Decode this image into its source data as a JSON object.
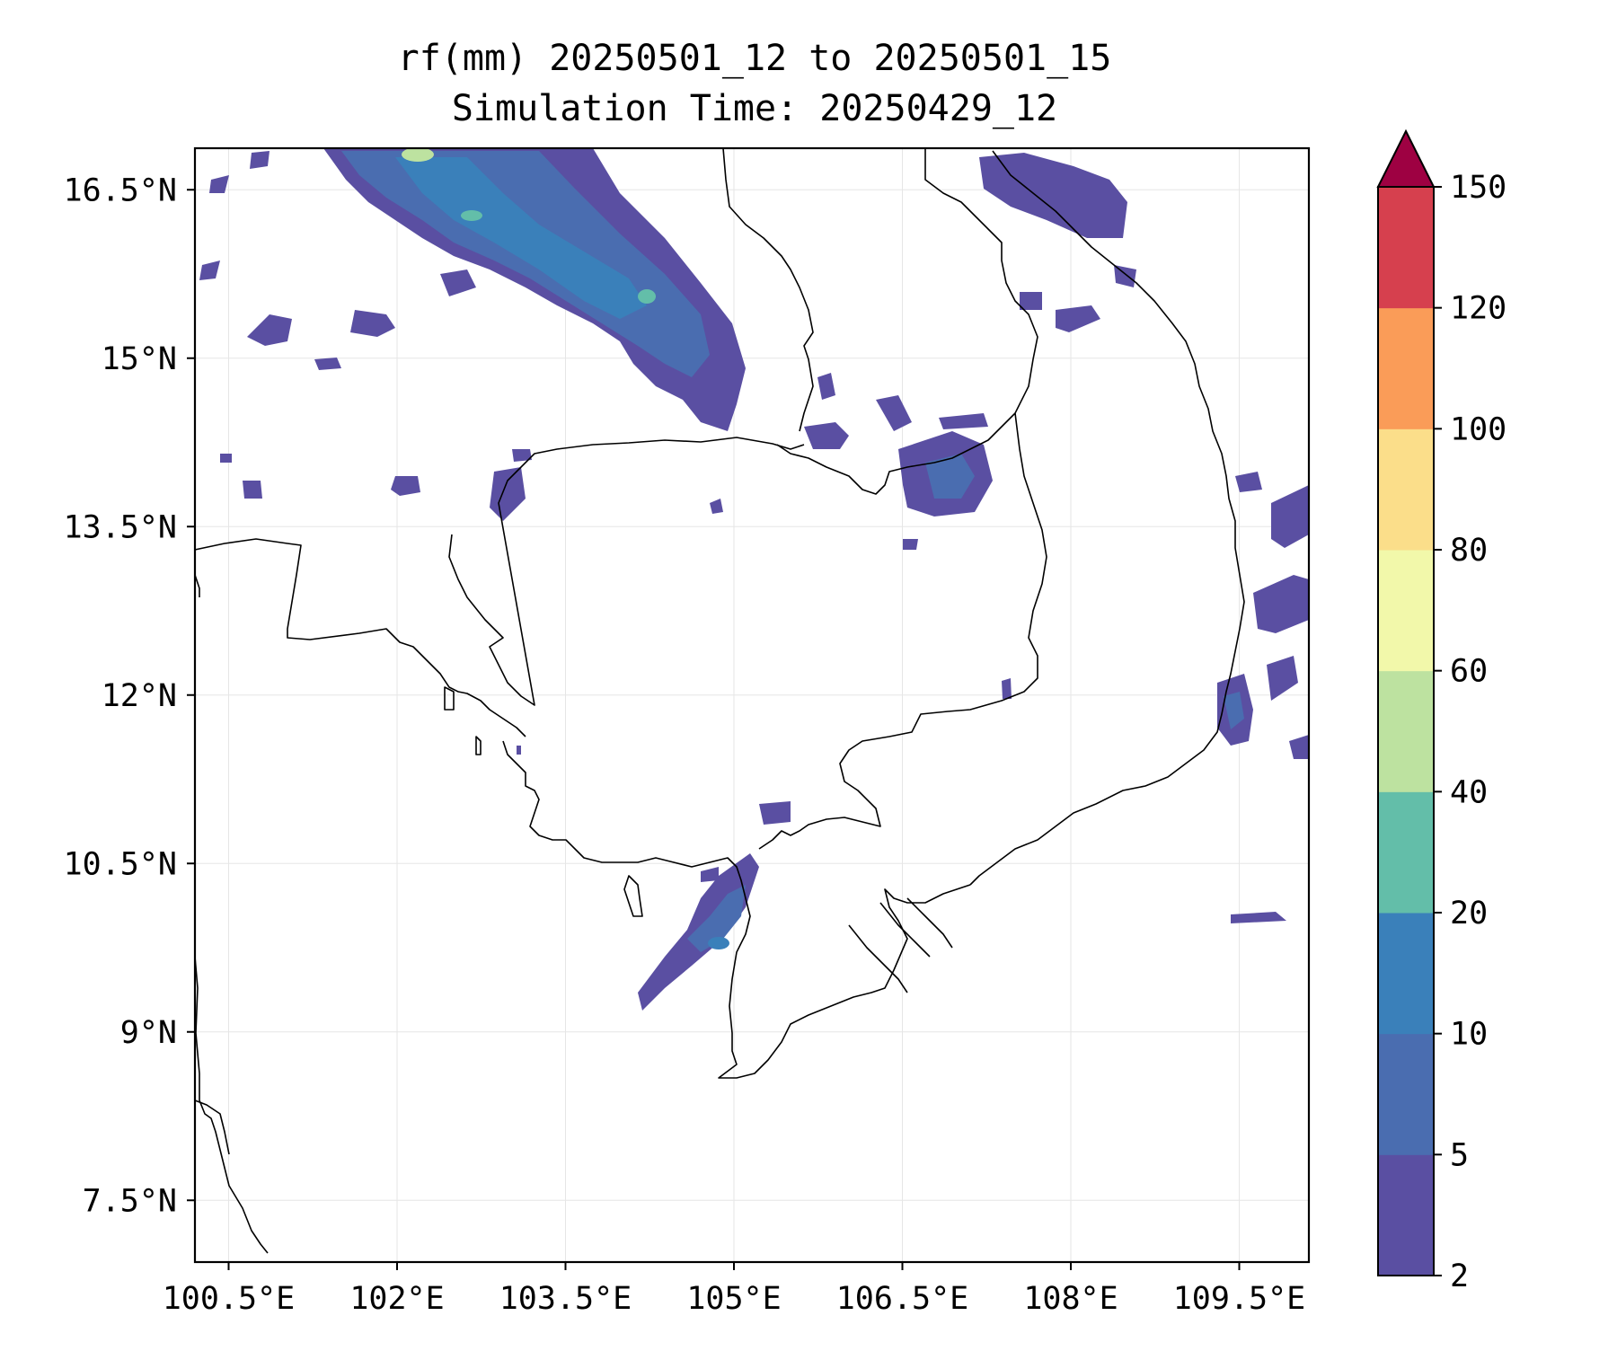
{
  "title_line1": "rf(mm) 20250501_12 to 20250501_15",
  "title_line2": "Simulation Time: 20250429_12",
  "map": {
    "lon_range": [
      100.2,
      110.12
    ],
    "lat_range": [
      6.95,
      16.87
    ],
    "lon_ticks": [
      {
        "value": 100.5,
        "label": "100.5°E"
      },
      {
        "value": 102,
        "label": "102°E"
      },
      {
        "value": 103.5,
        "label": "103.5°E"
      },
      {
        "value": 105,
        "label": "105°E"
      },
      {
        "value": 106.5,
        "label": "106.5°E"
      },
      {
        "value": 108,
        "label": "108°E"
      },
      {
        "value": 109.5,
        "label": "109.5°E"
      }
    ],
    "lat_ticks": [
      {
        "value": 16.5,
        "label": "16.5°N"
      },
      {
        "value": 15,
        "label": "15°N"
      },
      {
        "value": 13.5,
        "label": "13.5°N"
      },
      {
        "value": 12,
        "label": "12°N"
      },
      {
        "value": 10.5,
        "label": "10.5°N"
      },
      {
        "value": 9,
        "label": "9°N"
      },
      {
        "value": 7.5,
        "label": "7.5°N"
      }
    ],
    "gridlines": true
  },
  "colorbar": {
    "levels": [
      {
        "value": 2,
        "label": "2"
      },
      {
        "value": 5,
        "label": "5"
      },
      {
        "value": 10,
        "label": "10"
      },
      {
        "value": 20,
        "label": "20"
      },
      {
        "value": 40,
        "label": "40"
      },
      {
        "value": 60,
        "label": "60"
      },
      {
        "value": 80,
        "label": "80"
      },
      {
        "value": 100,
        "label": "100"
      },
      {
        "value": 120,
        "label": "120"
      },
      {
        "value": 150,
        "label": "150"
      }
    ],
    "colors": [
      "#5a4fa2",
      "#4a6db0",
      "#3a80ba",
      "#63bea9",
      "#bde2a0",
      "#f2f8aa",
      "#fbde8a",
      "#fa9c58",
      "#d6404e"
    ],
    "extend_color": "#9e0142"
  }
}
